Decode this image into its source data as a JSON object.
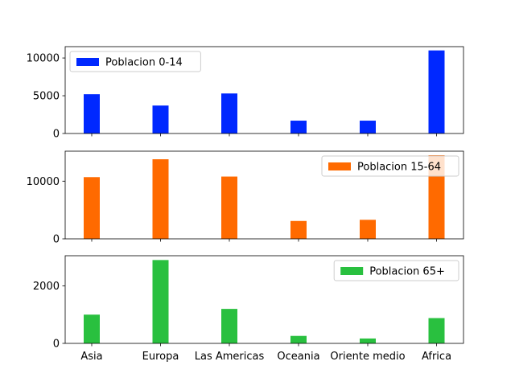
{
  "chart_data": [
    {
      "type": "bar",
      "categories": [
        "Asia",
        "Europa",
        "Las Americas",
        "Oceania",
        "Oriente medio",
        "Africa"
      ],
      "series": [
        {
          "name": "Poblacion 0-14",
          "values": [
            5200,
            3700,
            5300,
            1700,
            1700,
            11000
          ],
          "color": "#0028ff"
        }
      ],
      "ylim": [
        0,
        11500
      ],
      "yticks": [
        0,
        5000,
        10000
      ],
      "ytick_labels": [
        "0",
        "5000",
        "10000"
      ],
      "legend_position": "upper-left",
      "show_xtick_labels": false
    },
    {
      "type": "bar",
      "categories": [
        "Asia",
        "Europa",
        "Las Americas",
        "Oceania",
        "Oriente medio",
        "Africa"
      ],
      "series": [
        {
          "name": "Poblacion 15-64",
          "values": [
            10700,
            13800,
            10800,
            3100,
            3300,
            14500
          ],
          "color": "#ff6a00"
        }
      ],
      "ylim": [
        0,
        15200
      ],
      "yticks": [
        0,
        10000
      ],
      "ytick_labels": [
        "0",
        "10000"
      ],
      "legend_position": "upper-right",
      "show_xtick_labels": false
    },
    {
      "type": "bar",
      "categories": [
        "Asia",
        "Europa",
        "Las Americas",
        "Oceania",
        "Oriente medio",
        "Africa"
      ],
      "series": [
        {
          "name": "Poblacion 65+",
          "values": [
            1000,
            2900,
            1200,
            260,
            170,
            880
          ],
          "color": "#29c03f"
        }
      ],
      "ylim": [
        0,
        3050
      ],
      "yticks": [
        0,
        2000
      ],
      "ytick_labels": [
        "0",
        "2000"
      ],
      "legend_position": "upper-right",
      "show_xtick_labels": true
    }
  ]
}
